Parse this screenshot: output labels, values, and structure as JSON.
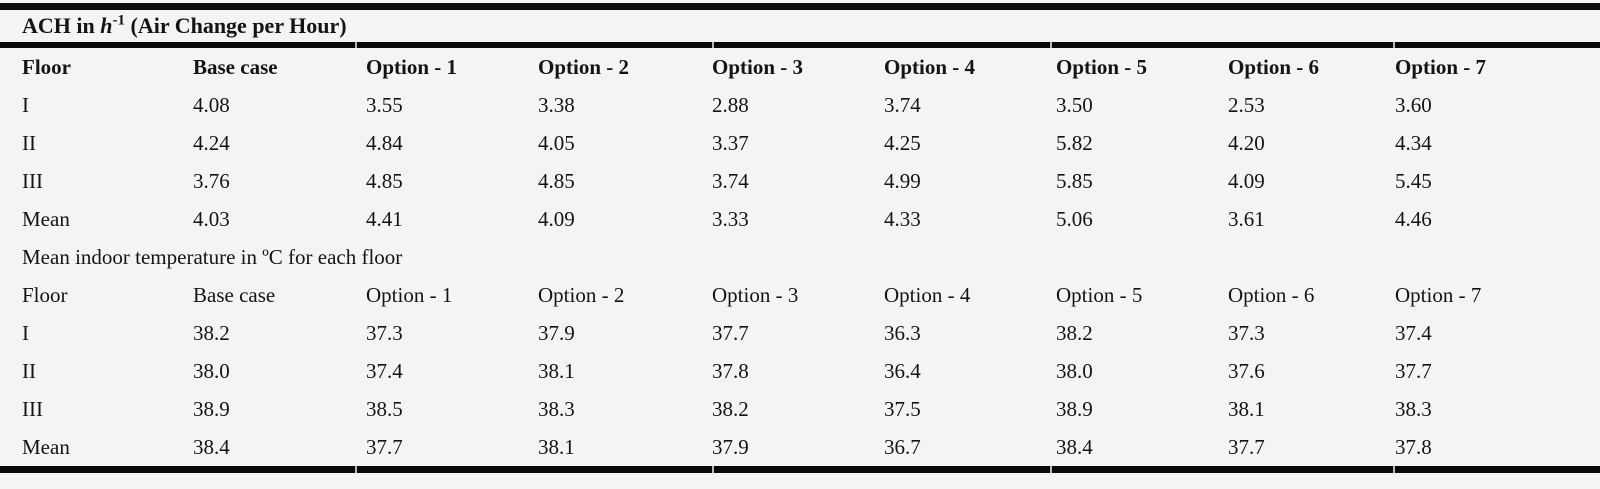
{
  "page": {
    "background_color": "#f4f4f6",
    "rule_color": "#0a0a0a",
    "text_color": "#141414"
  },
  "table": {
    "section1": {
      "title": {
        "prefix": "ACH in ",
        "symbol": "h",
        "exponent": "-1",
        "suffix": " (Air Change per Hour)"
      },
      "headers": [
        "Floor",
        "Base case",
        "Option - 1",
        "Option - 2",
        "Option - 3",
        "Option - 4",
        "Option - 5",
        "Option - 6",
        "Option - 7"
      ],
      "rows": [
        {
          "label": "I",
          "values": [
            "4.08",
            "3.55",
            "3.38",
            "2.88",
            "3.74",
            "3.50",
            "2.53",
            "3.60"
          ]
        },
        {
          "label": "II",
          "values": [
            "4.24",
            "4.84",
            "4.05",
            "3.37",
            "4.25",
            "5.82",
            "4.20",
            "4.34"
          ]
        },
        {
          "label": "III",
          "values": [
            "3.76",
            "4.85",
            "4.85",
            "3.74",
            "4.99",
            "5.85",
            "4.09",
            "5.45"
          ]
        },
        {
          "label": "Mean",
          "values": [
            "4.03",
            "4.41",
            "4.09",
            "3.33",
            "4.33",
            "5.06",
            "3.61",
            "4.46"
          ]
        }
      ]
    },
    "section2": {
      "title": "Mean indoor temperature in ºC for each floor",
      "headers": [
        "Floor",
        "Base case",
        "Option - 1",
        "Option - 2",
        "Option - 3",
        "Option - 4",
        "Option - 5",
        "Option - 6",
        "Option - 7"
      ],
      "rows": [
        {
          "label": "I",
          "values": [
            "38.2",
            "37.3",
            "37.9",
            "37.7",
            "36.3",
            "38.2",
            "37.3",
            "37.4"
          ]
        },
        {
          "label": "II",
          "values": [
            "38.0",
            "37.4",
            "38.1",
            "37.8",
            "36.4",
            "38.0",
            "37.6",
            "37.7"
          ]
        },
        {
          "label": "III",
          "values": [
            "38.9",
            "38.5",
            "38.3",
            "38.2",
            "37.5",
            "38.9",
            "38.1",
            "38.3"
          ]
        },
        {
          "label": "Mean",
          "values": [
            "38.4",
            "37.7",
            "38.1",
            "37.9",
            "36.7",
            "38.4",
            "37.7",
            "37.8"
          ]
        }
      ]
    }
  }
}
